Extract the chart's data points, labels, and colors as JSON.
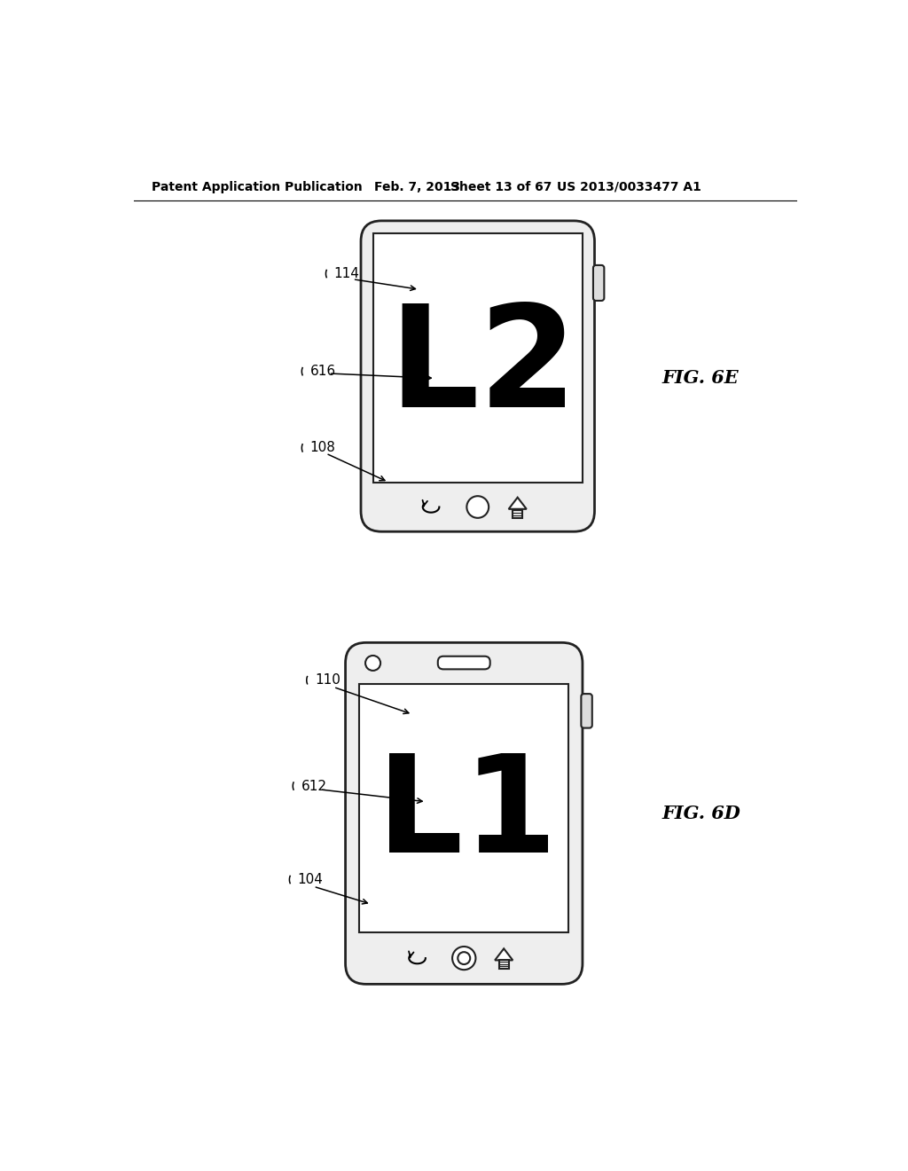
{
  "bg_color": "#ffffff",
  "header_text": "Patent Application Publication",
  "header_date": "Feb. 7, 2013",
  "header_sheet": "Sheet 13 of 67",
  "header_patent": "US 2013/0033477 A1",
  "fig_e_label": "FIG. 6E",
  "fig_d_label": "FIG. 6D",
  "label_114": "114",
  "label_616": "616",
  "label_108": "108",
  "label_110": "110",
  "label_612": "612",
  "label_104": "104",
  "text_L2": "L2",
  "text_L1": "L1"
}
